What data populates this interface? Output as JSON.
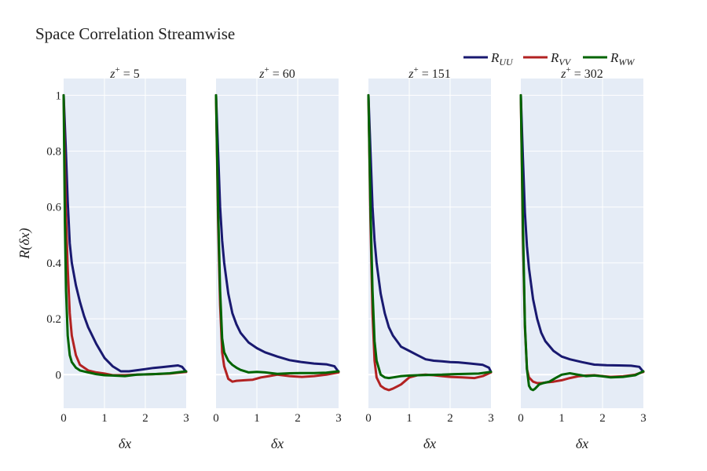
{
  "chart_data": {
    "type": "line",
    "title": "Space Correlation Streamwise",
    "xlabel": "δx",
    "ylabel": "R(δx)",
    "xlim": [
      0,
      3
    ],
    "ylim": [
      -0.12,
      1.06
    ],
    "x_ticks": [
      "0",
      "1",
      "2",
      "3"
    ],
    "y_ticks": [
      {
        "value": 0,
        "label": "0"
      },
      {
        "value": 0.2,
        "label": "0.2"
      },
      {
        "value": 0.4,
        "label": "0.4"
      },
      {
        "value": 0.6,
        "label": "0.6"
      },
      {
        "value": 0.8,
        "label": "0.8"
      },
      {
        "value": 1,
        "label": "1"
      }
    ],
    "grid": true,
    "legend_position": "top-right",
    "legend": [
      {
        "key": "uu",
        "label": "R_UU",
        "base": "R",
        "subscript": "UU",
        "color": "#191970"
      },
      {
        "key": "vv",
        "label": "R_VV",
        "base": "R",
        "subscript": "VV",
        "color": "#b22222"
      },
      {
        "key": "ww",
        "label": "R_WW",
        "base": "R",
        "subscript": "WW",
        "color": "#006400"
      }
    ],
    "panels": [
      {
        "title": "z+ = 5",
        "title_base": "z",
        "title_sup": "+",
        "title_rest": " = 5",
        "series": {
          "uu": {
            "x": [
              0,
              0.05,
              0.1,
              0.15,
              0.2,
              0.3,
              0.4,
              0.5,
              0.6,
              0.8,
              1.0,
              1.2,
              1.4,
              1.6,
              1.8,
              2.0,
              2.2,
              2.4,
              2.6,
              2.8,
              2.9,
              3.0
            ],
            "y": [
              1.0,
              0.82,
              0.62,
              0.47,
              0.4,
              0.32,
              0.26,
              0.21,
              0.17,
              0.11,
              0.06,
              0.03,
              0.012,
              0.012,
              0.016,
              0.02,
              0.024,
              0.027,
              0.03,
              0.033,
              0.028,
              0.01
            ]
          },
          "vv": {
            "x": [
              0,
              0.05,
              0.1,
              0.15,
              0.2,
              0.3,
              0.4,
              0.6,
              0.8,
              1.0,
              1.2,
              1.5,
              1.8,
              2.2,
              2.6,
              3.0
            ],
            "y": [
              1.0,
              0.6,
              0.38,
              0.22,
              0.14,
              0.07,
              0.035,
              0.015,
              0.008,
              0.004,
              -0.002,
              -0.002,
              0.0,
              0.002,
              0.004,
              0.01
            ]
          },
          "ww": {
            "x": [
              0,
              0.03,
              0.06,
              0.1,
              0.15,
              0.2,
              0.3,
              0.4,
              0.6,
              0.8,
              1.0,
              1.2,
              1.5,
              1.8,
              2.2,
              2.6,
              3.0
            ],
            "y": [
              1.0,
              0.55,
              0.3,
              0.14,
              0.07,
              0.045,
              0.025,
              0.015,
              0.008,
              0.002,
              -0.002,
              -0.003,
              -0.005,
              0.0,
              0.002,
              0.005,
              0.012
            ]
          }
        }
      },
      {
        "title": "z+ = 60",
        "title_base": "z",
        "title_sup": "+",
        "title_rest": " = 60",
        "series": {
          "uu": {
            "x": [
              0,
              0.05,
              0.1,
              0.15,
              0.2,
              0.3,
              0.4,
              0.5,
              0.6,
              0.8,
              1.0,
              1.2,
              1.5,
              1.8,
              2.1,
              2.4,
              2.7,
              2.9,
              3.0
            ],
            "y": [
              1.0,
              0.8,
              0.6,
              0.48,
              0.4,
              0.29,
              0.22,
              0.18,
              0.15,
              0.115,
              0.095,
              0.08,
              0.065,
              0.052,
              0.045,
              0.04,
              0.037,
              0.03,
              0.01
            ]
          },
          "vv": {
            "x": [
              0,
              0.05,
              0.1,
              0.15,
              0.2,
              0.3,
              0.4,
              0.5,
              0.7,
              0.9,
              1.1,
              1.3,
              1.5,
              1.8,
              2.1,
              2.4,
              2.7,
              3.0
            ],
            "y": [
              1.0,
              0.55,
              0.25,
              0.08,
              0.03,
              -0.015,
              -0.025,
              -0.022,
              -0.02,
              -0.018,
              -0.01,
              -0.005,
              0.0,
              -0.005,
              -0.008,
              -0.005,
              0.0,
              0.008
            ]
          },
          "ww": {
            "x": [
              0,
              0.05,
              0.1,
              0.15,
              0.2,
              0.3,
              0.4,
              0.5,
              0.6,
              0.8,
              1.0,
              1.2,
              1.5,
              1.8,
              2.1,
              2.4,
              2.7,
              3.0
            ],
            "y": [
              1.0,
              0.6,
              0.3,
              0.13,
              0.08,
              0.05,
              0.035,
              0.025,
              0.017,
              0.008,
              0.01,
              0.008,
              0.003,
              0.005,
              0.006,
              0.006,
              0.007,
              0.012
            ]
          }
        }
      },
      {
        "title": "z+ = 151",
        "title_base": "z",
        "title_sup": "+",
        "title_rest": " = 151",
        "series": {
          "uu": {
            "x": [
              0,
              0.05,
              0.1,
              0.15,
              0.2,
              0.3,
              0.4,
              0.5,
              0.6,
              0.8,
              1.0,
              1.2,
              1.4,
              1.6,
              1.8,
              2.0,
              2.2,
              2.5,
              2.8,
              2.95,
              3.0
            ],
            "y": [
              1.0,
              0.8,
              0.6,
              0.48,
              0.4,
              0.29,
              0.22,
              0.17,
              0.14,
              0.1,
              0.085,
              0.07,
              0.055,
              0.05,
              0.048,
              0.045,
              0.044,
              0.04,
              0.035,
              0.025,
              0.01
            ]
          },
          "vv": {
            "x": [
              0,
              0.05,
              0.1,
              0.15,
              0.2,
              0.3,
              0.4,
              0.5,
              0.6,
              0.8,
              1.0,
              1.2,
              1.4,
              1.6,
              1.8,
              2.0,
              2.3,
              2.6,
              2.8,
              3.0
            ],
            "y": [
              1.0,
              0.55,
              0.22,
              0.05,
              -0.01,
              -0.04,
              -0.05,
              -0.055,
              -0.05,
              -0.035,
              -0.01,
              -0.002,
              0.0,
              -0.002,
              -0.005,
              -0.008,
              -0.01,
              -0.012,
              -0.005,
              0.008
            ]
          },
          "ww": {
            "x": [
              0,
              0.05,
              0.1,
              0.15,
              0.2,
              0.3,
              0.4,
              0.5,
              0.6,
              0.8,
              1.0,
              1.2,
              1.5,
              1.8,
              2.1,
              2.4,
              2.7,
              3.0
            ],
            "y": [
              1.0,
              0.6,
              0.3,
              0.12,
              0.05,
              0.0,
              -0.01,
              -0.012,
              -0.01,
              -0.005,
              -0.003,
              -0.002,
              -0.001,
              0.0,
              0.002,
              0.003,
              0.004,
              0.01
            ]
          }
        }
      },
      {
        "title": "z+ = 302",
        "title_base": "z",
        "title_sup": "+",
        "title_rest": " = 302",
        "series": {
          "uu": {
            "x": [
              0,
              0.05,
              0.1,
              0.15,
              0.2,
              0.3,
              0.4,
              0.5,
              0.6,
              0.8,
              1.0,
              1.2,
              1.5,
              1.8,
              2.1,
              2.4,
              2.7,
              2.9,
              3.0
            ],
            "y": [
              1.0,
              0.78,
              0.58,
              0.46,
              0.38,
              0.27,
              0.2,
              0.15,
              0.12,
              0.085,
              0.065,
              0.055,
              0.045,
              0.036,
              0.034,
              0.033,
              0.032,
              0.028,
              0.01
            ]
          },
          "vv": {
            "x": [
              0,
              0.05,
              0.1,
              0.15,
              0.2,
              0.3,
              0.4,
              0.5,
              0.6,
              0.8,
              1.0,
              1.2,
              1.4,
              1.6,
              1.8,
              2.0,
              2.2,
              2.5,
              2.8,
              3.0
            ],
            "y": [
              1.0,
              0.5,
              0.17,
              0.02,
              -0.01,
              -0.025,
              -0.03,
              -0.03,
              -0.028,
              -0.025,
              -0.02,
              -0.012,
              -0.006,
              -0.003,
              -0.002,
              -0.005,
              -0.008,
              -0.006,
              0.0,
              0.01
            ]
          },
          "ww": {
            "x": [
              0,
              0.05,
              0.1,
              0.15,
              0.2,
              0.25,
              0.3,
              0.35,
              0.45,
              0.55,
              0.7,
              0.85,
              1.0,
              1.2,
              1.4,
              1.6,
              1.8,
              2.0,
              2.2,
              2.5,
              2.8,
              3.0
            ],
            "y": [
              1.0,
              0.55,
              0.18,
              0.02,
              -0.04,
              -0.052,
              -0.055,
              -0.05,
              -0.035,
              -0.03,
              -0.025,
              -0.012,
              0.0,
              0.005,
              0.0,
              -0.005,
              -0.003,
              -0.006,
              -0.01,
              -0.008,
              -0.002,
              0.012
            ]
          }
        }
      }
    ]
  }
}
